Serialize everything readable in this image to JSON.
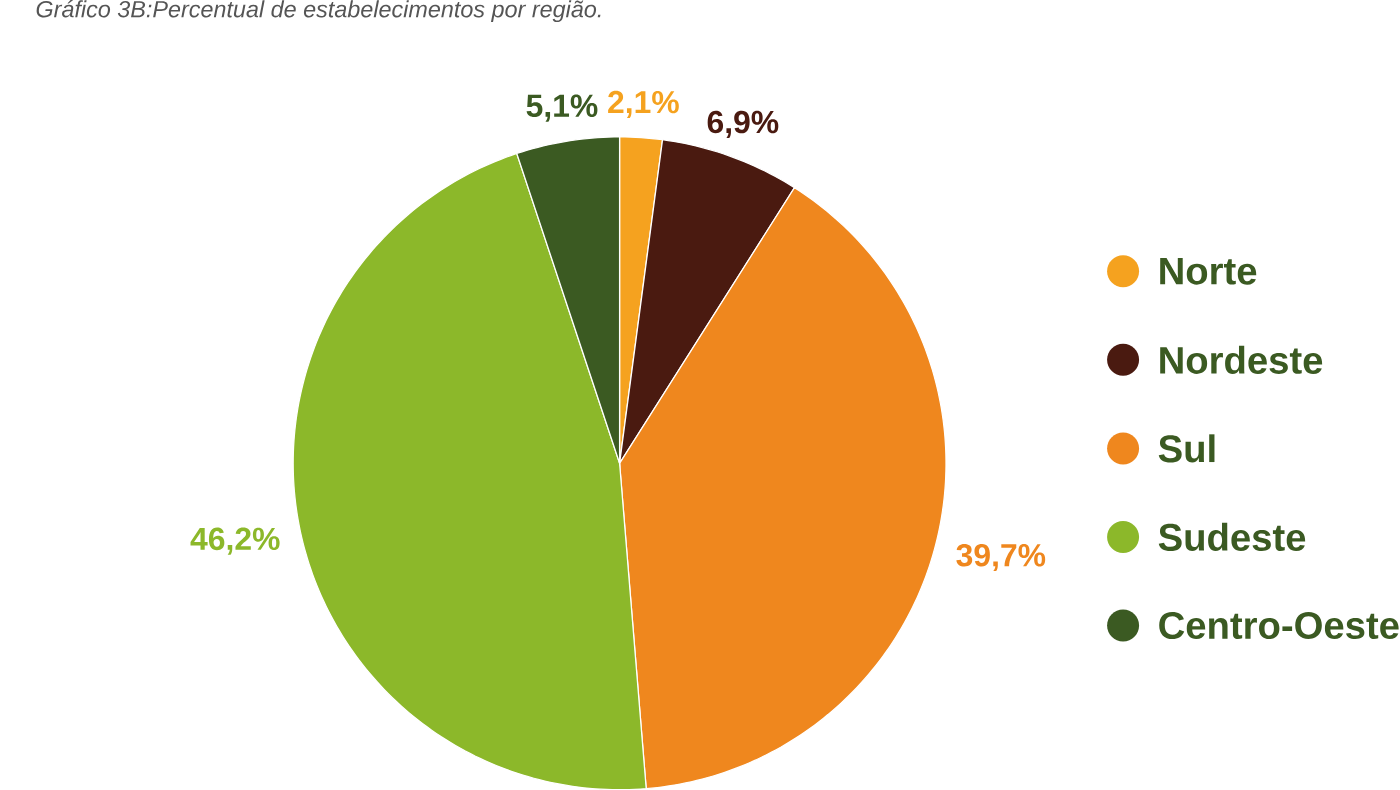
{
  "chart_data": {
    "type": "pie",
    "title": "Gráfico 3B:Percentual de estabelecimentos por região.",
    "categories": [
      "Norte",
      "Nordeste",
      "Sul",
      "Sudeste",
      "Centro-Oeste"
    ],
    "values": [
      2.1,
      6.9,
      39.7,
      46.2,
      5.1
    ],
    "colors": [
      "#f5a21f",
      "#4a1a10",
      "#ef871e",
      "#8cb82a",
      "#3b5a22"
    ],
    "value_labels": [
      "2,1%",
      "6,9%",
      "39,7%",
      "46,2%",
      "5,1%"
    ],
    "legend": "right"
  }
}
